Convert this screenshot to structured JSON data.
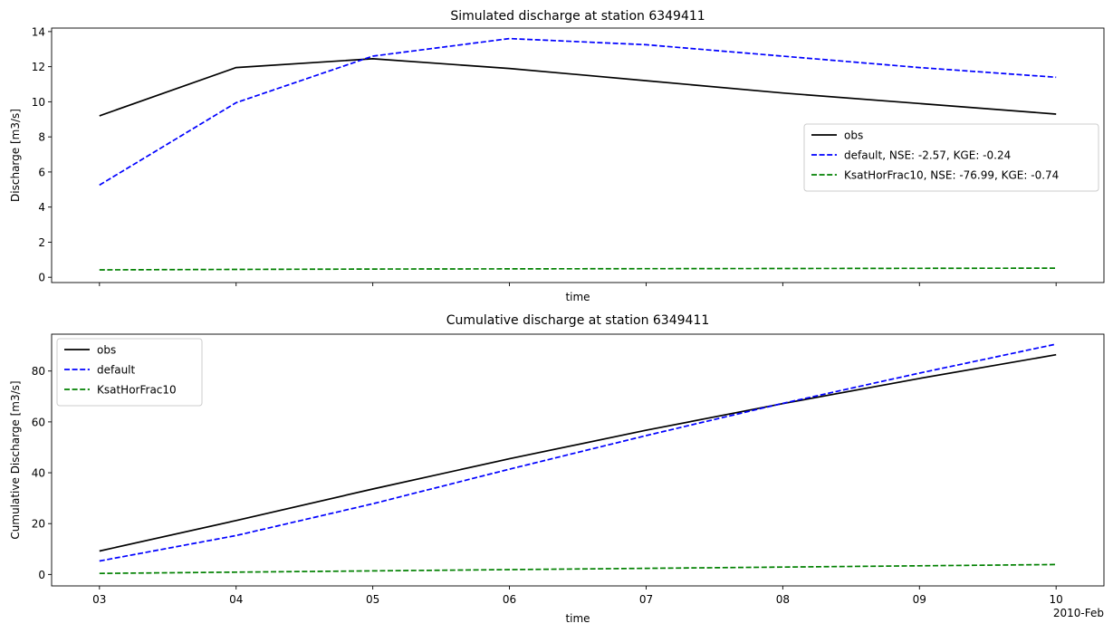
{
  "chart_data": [
    {
      "type": "line",
      "title": "Simulated discharge at station 6349411",
      "xlabel": "time",
      "ylabel": "Discharge [m3/s]",
      "x": [
        "03",
        "04",
        "05",
        "06",
        "07",
        "08",
        "09",
        "10"
      ],
      "show_x_ticklabels": false,
      "ylim": [
        -0.3,
        14.2
      ],
      "yticks": [
        0,
        2,
        4,
        6,
        8,
        10,
        12,
        14
      ],
      "grid": false,
      "legend_placement": "center-right",
      "series": [
        {
          "name": "obs",
          "color": "#000000",
          "dash": "solid",
          "values": [
            9.2,
            11.95,
            12.45,
            11.9,
            11.2,
            10.5,
            9.9,
            9.3
          ]
        },
        {
          "name": "default, NSE: -2.57, KGE: -0.24",
          "color": "#0000ff",
          "dash": "dashed",
          "values": [
            5.25,
            9.95,
            12.6,
            13.6,
            13.25,
            12.6,
            11.95,
            11.4
          ]
        },
        {
          "name": "KsatHorFrac10, NSE: -76.99, KGE: -0.74",
          "color": "#008000",
          "dash": "dashed",
          "values": [
            0.42,
            0.45,
            0.47,
            0.48,
            0.49,
            0.5,
            0.51,
            0.52
          ]
        }
      ]
    },
    {
      "type": "line",
      "title": "Cumulative discharge at station 6349411",
      "xlabel": "time",
      "ylabel": "Cumulative Discharge [m3/s]",
      "x": [
        "03",
        "04",
        "05",
        "06",
        "07",
        "08",
        "09",
        "10"
      ],
      "show_x_ticklabels": true,
      "x_offset_label": "2010-Feb",
      "ylim": [
        -4.5,
        94.5
      ],
      "yticks": [
        0,
        20,
        40,
        60,
        80
      ],
      "grid": false,
      "legend_placement": "top-left",
      "series": [
        {
          "name": "obs",
          "color": "#000000",
          "dash": "solid",
          "values": [
            9.2,
            21.2,
            33.6,
            45.5,
            56.7,
            67.2,
            77.1,
            86.4
          ]
        },
        {
          "name": "default",
          "color": "#0000ff",
          "dash": "dashed",
          "values": [
            5.3,
            15.3,
            27.8,
            41.4,
            54.6,
            67.3,
            79.2,
            90.6
          ]
        },
        {
          "name": "KsatHorFrac10",
          "color": "#008000",
          "dash": "dashed",
          "values": [
            0.4,
            0.9,
            1.4,
            1.9,
            2.4,
            2.9,
            3.4,
            3.9
          ]
        }
      ]
    }
  ]
}
